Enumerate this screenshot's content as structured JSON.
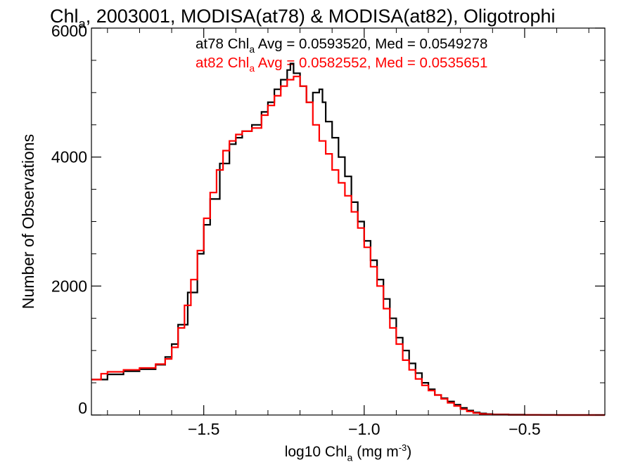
{
  "chart_data": {
    "type": "line",
    "title_parts": [
      "Chl",
      "a",
      ", 2003001, MODISA(at78) & MODISA(at82), Oligotrophi"
    ],
    "xlabel_parts": [
      "log10 Chl",
      "a",
      " (mg m",
      "-3",
      ")"
    ],
    "ylabel": "Number of Observations",
    "xlim": [
      -1.85,
      -0.25
    ],
    "ylim": [
      0,
      6000
    ],
    "x_ticks": [
      {
        "value": -1.5,
        "label": "−1.5"
      },
      {
        "value": -1.0,
        "label": "−1.0"
      },
      {
        "value": -0.5,
        "label": "−0.5"
      }
    ],
    "y_ticks": [
      {
        "value": 0,
        "label": "0"
      },
      {
        "value": 2000,
        "label": "2000"
      },
      {
        "value": 4000,
        "label": "4000"
      },
      {
        "value": 6000,
        "label": "6000"
      }
    ],
    "annotations": [
      {
        "series": "at78",
        "parts": [
          "at78 Chl",
          "a",
          " Avg = 0.0593520, Med = 0.0549278"
        ],
        "color": "#000000"
      },
      {
        "series": "at82",
        "parts": [
          "at82 Chl",
          "a",
          " Avg = 0.0582552, Med = 0.0535651"
        ],
        "color": "#ff0000"
      }
    ],
    "series": [
      {
        "color": "#000000",
        "x": [
          -1.85,
          -1.8,
          -1.75,
          -1.7,
          -1.65,
          -1.62,
          -1.6,
          -1.58,
          -1.55,
          -1.52,
          -1.5,
          -1.48,
          -1.45,
          -1.42,
          -1.4,
          -1.38,
          -1.35,
          -1.32,
          -1.3,
          -1.28,
          -1.26,
          -1.24,
          -1.23,
          -1.22,
          -1.2,
          -1.18,
          -1.16,
          -1.14,
          -1.13,
          -1.12,
          -1.1,
          -1.08,
          -1.06,
          -1.04,
          -1.02,
          -1.0,
          -0.98,
          -0.96,
          -0.94,
          -0.92,
          -0.9,
          -0.88,
          -0.86,
          -0.84,
          -0.82,
          -0.8,
          -0.78,
          -0.76,
          -0.74,
          -0.72,
          -0.7,
          -0.68,
          -0.66,
          -0.64,
          -0.62,
          -0.6,
          -0.55,
          -0.5,
          -0.45,
          -0.4,
          -0.3,
          -0.25
        ],
        "y": [
          550,
          630,
          680,
          710,
          780,
          900,
          1100,
          1400,
          1900,
          2500,
          2950,
          3350,
          3900,
          4200,
          4300,
          4400,
          4500,
          4700,
          4850,
          5050,
          5200,
          5350,
          5450,
          5300,
          5100,
          4850,
          5000,
          5050,
          4850,
          4550,
          4300,
          4000,
          3700,
          3300,
          3000,
          2700,
          2400,
          2100,
          1800,
          1500,
          1200,
          1000,
          800,
          650,
          500,
          400,
          310,
          260,
          210,
          160,
          110,
          70,
          40,
          25,
          15,
          10,
          5,
          2,
          1,
          0,
          0,
          0
        ]
      },
      {
        "color": "#ff0000",
        "x": [
          -1.85,
          -1.82,
          -1.8,
          -1.75,
          -1.7,
          -1.65,
          -1.62,
          -1.6,
          -1.58,
          -1.56,
          -1.54,
          -1.52,
          -1.5,
          -1.48,
          -1.46,
          -1.44,
          -1.42,
          -1.4,
          -1.38,
          -1.35,
          -1.32,
          -1.3,
          -1.28,
          -1.26,
          -1.24,
          -1.22,
          -1.2,
          -1.18,
          -1.16,
          -1.14,
          -1.12,
          -1.1,
          -1.08,
          -1.06,
          -1.04,
          -1.02,
          -1.0,
          -0.98,
          -0.96,
          -0.94,
          -0.92,
          -0.9,
          -0.88,
          -0.86,
          -0.84,
          -0.82,
          -0.8,
          -0.78,
          -0.76,
          -0.74,
          -0.72,
          -0.7,
          -0.68,
          -0.66,
          -0.64,
          -0.62,
          -0.6,
          -0.55,
          -0.5,
          -0.45,
          -0.4,
          -0.3,
          -0.25
        ],
        "y": [
          550,
          640,
          670,
          700,
          730,
          790,
          870,
          1050,
          1350,
          1700,
          2100,
          2550,
          3050,
          3450,
          3800,
          4100,
          4250,
          4350,
          4400,
          4450,
          4650,
          4800,
          4950,
          5100,
          5200,
          5250,
          5100,
          4850,
          4500,
          4250,
          4050,
          3800,
          3600,
          3400,
          3150,
          2900,
          2600,
          2300,
          2000,
          1650,
          1350,
          1100,
          850,
          700,
          560,
          460,
          380,
          310,
          250,
          190,
          140,
          90,
          55,
          30,
          15,
          10,
          5,
          2,
          1,
          0,
          0,
          0,
          0
        ]
      }
    ]
  }
}
